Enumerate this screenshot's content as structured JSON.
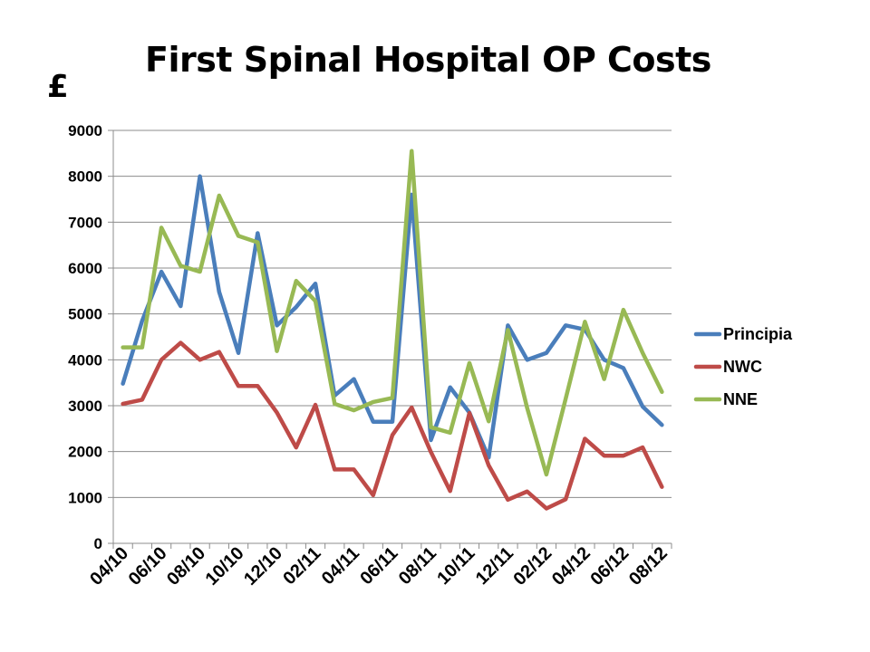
{
  "title": "First Spinal Hospital OP Costs",
  "unit_label": "£",
  "chart_data": {
    "type": "line",
    "title": "First Spinal Hospital OP Costs",
    "ylabel": "£",
    "xlabel": "",
    "ylim": [
      0,
      9000
    ],
    "yticks": [
      0,
      1000,
      2000,
      3000,
      4000,
      5000,
      6000,
      7000,
      8000,
      9000
    ],
    "x": [
      "04/10",
      "05/10",
      "06/10",
      "07/10",
      "08/10",
      "09/10",
      "10/10",
      "11/10",
      "12/10",
      "01/11",
      "02/11",
      "03/11",
      "04/11",
      "05/11",
      "06/11",
      "07/11",
      "08/11",
      "09/11",
      "10/11",
      "11/11",
      "12/11",
      "01/12",
      "02/12",
      "03/12",
      "04/12",
      "05/12",
      "06/12",
      "07/12",
      "08/12"
    ],
    "xtick_labels": [
      "04/10",
      "06/10",
      "08/10",
      "10/10",
      "12/10",
      "02/11",
      "04/11",
      "06/11",
      "08/11",
      "10/11",
      "12/11",
      "02/12",
      "04/12",
      "06/12",
      "08/12"
    ],
    "grid": true,
    "legend": "right",
    "series": [
      {
        "name": "Principia",
        "color": "#4a7ebb",
        "values": [
          3480,
          4850,
          5920,
          5170,
          8000,
          5480,
          4150,
          6760,
          4750,
          5150,
          5660,
          3220,
          3580,
          2650,
          2650,
          7600,
          2250,
          3400,
          2850,
          1870,
          4750,
          4000,
          4150,
          4750,
          4660,
          4000,
          3820,
          2980,
          2580
        ]
      },
      {
        "name": "NWC",
        "color": "#be4b48",
        "values": [
          3040,
          3130,
          4000,
          4370,
          4000,
          4170,
          3430,
          3430,
          2850,
          2090,
          3020,
          1610,
          1610,
          1050,
          2360,
          2960,
          1990,
          1140,
          2840,
          1700,
          950,
          1130,
          760,
          960,
          2280,
          1910,
          1910,
          2090,
          1230
        ]
      },
      {
        "name": "NNE",
        "color": "#98b954",
        "values": [
          4270,
          4270,
          6880,
          6050,
          5920,
          7580,
          6700,
          6560,
          4190,
          5720,
          5280,
          3040,
          2900,
          3080,
          3170,
          8550,
          2530,
          2410,
          3930,
          2660,
          4650,
          2950,
          1500,
          3150,
          4830,
          3580,
          5090,
          4150,
          3300
        ]
      }
    ]
  }
}
